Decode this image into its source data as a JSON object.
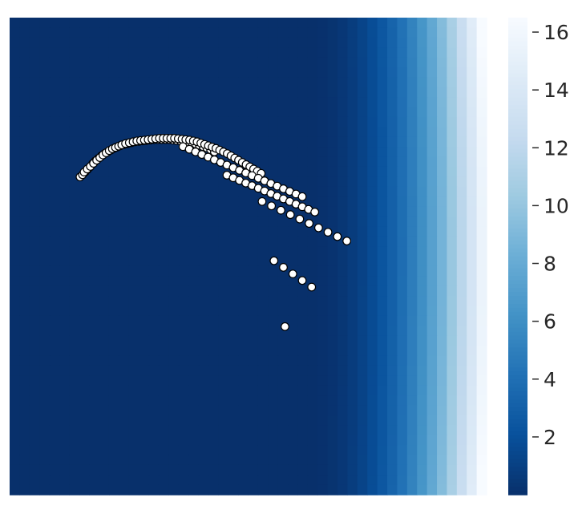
{
  "chart_data": {
    "type": "heatmap",
    "title": "",
    "xlabel": "",
    "ylabel": "",
    "axes_ticks_visible": false,
    "grid": false,
    "colormap": "Blues_r",
    "colormap_stops": [
      "#08306b",
      "#08519c",
      "#2171b5",
      "#4292c6",
      "#6baed6",
      "#9ecae1",
      "#c6dbef",
      "#deebf7",
      "#f7fbff"
    ],
    "heatmap": {
      "description_free_model": {
        "x_cells": 48,
        "y_cells": 48,
        "base_value": 0.0,
        "ramp_start_x": 0.62,
        "ramp_exponent": 2.3,
        "max_value": 16.5
      }
    },
    "colorbar": {
      "location": "right",
      "min": 0,
      "max": 16.5,
      "ticks": [
        2,
        4,
        6,
        8,
        10,
        12,
        14,
        16
      ],
      "tick_labels": [
        "2",
        "4",
        "6",
        "8",
        "10",
        "12",
        "14",
        "16"
      ]
    },
    "scatter": {
      "marker_fill": "#ffffff",
      "marker_edge": "#000000",
      "points": [
        [
          0.232,
          0.509
        ],
        [
          0.24,
          0.504
        ],
        [
          0.248,
          0.498
        ],
        [
          0.256,
          0.492
        ],
        [
          0.264,
          0.486
        ],
        [
          0.272,
          0.479
        ],
        [
          0.28,
          0.473
        ],
        [
          0.29,
          0.467
        ],
        [
          0.3,
          0.461
        ],
        [
          0.31,
          0.456
        ],
        [
          0.32,
          0.452
        ],
        [
          0.33,
          0.448
        ],
        [
          0.34,
          0.444
        ],
        [
          0.35,
          0.441
        ],
        [
          0.36,
          0.438
        ],
        [
          0.372,
          0.435
        ],
        [
          0.384,
          0.433
        ],
        [
          0.396,
          0.431
        ],
        [
          0.408,
          0.429
        ],
        [
          0.42,
          0.428
        ],
        [
          0.432,
          0.427
        ],
        [
          0.444,
          0.426
        ],
        [
          0.456,
          0.425
        ],
        [
          0.468,
          0.424
        ],
        [
          0.48,
          0.424
        ],
        [
          0.492,
          0.424
        ],
        [
          0.504,
          0.424
        ],
        [
          0.516,
          0.424
        ],
        [
          0.528,
          0.425
        ],
        [
          0.54,
          0.426
        ],
        [
          0.552,
          0.427
        ],
        [
          0.564,
          0.428
        ],
        [
          0.576,
          0.43
        ],
        [
          0.588,
          0.432
        ],
        [
          0.6,
          0.434
        ],
        [
          0.612,
          0.437
        ],
        [
          0.624,
          0.44
        ],
        [
          0.636,
          0.443
        ],
        [
          0.648,
          0.447
        ],
        [
          0.66,
          0.452
        ],
        [
          0.245,
          0.498
        ],
        [
          0.255,
          0.491
        ],
        [
          0.265,
          0.485
        ],
        [
          0.275,
          0.478
        ],
        [
          0.285,
          0.471
        ],
        [
          0.295,
          0.465
        ],
        [
          0.305,
          0.459
        ],
        [
          0.315,
          0.454
        ],
        [
          0.325,
          0.449
        ],
        [
          0.335,
          0.445
        ],
        [
          0.345,
          0.442
        ],
        [
          0.355,
          0.439
        ],
        [
          0.365,
          0.436
        ],
        [
          0.377,
          0.433
        ],
        [
          0.389,
          0.431
        ],
        [
          0.401,
          0.429
        ],
        [
          0.413,
          0.427
        ],
        [
          0.425,
          0.426
        ],
        [
          0.437,
          0.425
        ],
        [
          0.449,
          0.424
        ],
        [
          0.461,
          0.423
        ],
        [
          0.473,
          0.422
        ],
        [
          0.485,
          0.421
        ],
        [
          0.497,
          0.421
        ],
        [
          0.509,
          0.421
        ],
        [
          0.521,
          0.421
        ],
        [
          0.533,
          0.421
        ],
        [
          0.545,
          0.422
        ],
        [
          0.557,
          0.423
        ],
        [
          0.569,
          0.424
        ],
        [
          0.581,
          0.425
        ],
        [
          0.593,
          0.427
        ],
        [
          0.605,
          0.429
        ],
        [
          0.617,
          0.432
        ],
        [
          0.629,
          0.435
        ],
        [
          0.641,
          0.438
        ],
        [
          0.653,
          0.441
        ],
        [
          0.665,
          0.444
        ],
        [
          0.677,
          0.448
        ],
        [
          0.689,
          0.452
        ],
        [
          0.701,
          0.456
        ],
        [
          0.713,
          0.461
        ],
        [
          0.725,
          0.466
        ],
        [
          0.737,
          0.471
        ],
        [
          0.749,
          0.476
        ],
        [
          0.761,
          0.481
        ],
        [
          0.773,
          0.486
        ],
        [
          0.785,
          0.491
        ],
        [
          0.797,
          0.496
        ],
        [
          0.809,
          0.501
        ],
        [
          0.56,
          0.44
        ],
        [
          0.58,
          0.446
        ],
        [
          0.6,
          0.452
        ],
        [
          0.62,
          0.458
        ],
        [
          0.64,
          0.464
        ],
        [
          0.66,
          0.47
        ],
        [
          0.68,
          0.476
        ],
        [
          0.7,
          0.482
        ],
        [
          0.72,
          0.488
        ],
        [
          0.74,
          0.494
        ],
        [
          0.76,
          0.5
        ],
        [
          0.78,
          0.506
        ],
        [
          0.8,
          0.512
        ],
        [
          0.82,
          0.518
        ],
        [
          0.84,
          0.524
        ],
        [
          0.86,
          0.53
        ],
        [
          0.88,
          0.536
        ],
        [
          0.9,
          0.542
        ],
        [
          0.92,
          0.548
        ],
        [
          0.94,
          0.554
        ],
        [
          0.7,
          0.505
        ],
        [
          0.72,
          0.511
        ],
        [
          0.74,
          0.517
        ],
        [
          0.76,
          0.523
        ],
        [
          0.78,
          0.529
        ],
        [
          0.8,
          0.535
        ],
        [
          0.82,
          0.541
        ],
        [
          0.84,
          0.547
        ],
        [
          0.86,
          0.553
        ],
        [
          0.88,
          0.559
        ],
        [
          0.9,
          0.565
        ],
        [
          0.92,
          0.571
        ],
        [
          0.94,
          0.577
        ],
        [
          0.96,
          0.583
        ],
        [
          0.98,
          0.589
        ],
        [
          0.812,
          0.565
        ],
        [
          0.842,
          0.575
        ],
        [
          0.872,
          0.585
        ],
        [
          0.902,
          0.595
        ],
        [
          0.932,
          0.605
        ],
        [
          0.962,
          0.615
        ],
        [
          0.992,
          0.625
        ],
        [
          1.022,
          0.635
        ],
        [
          1.052,
          0.645
        ],
        [
          1.082,
          0.655
        ],
        [
          0.85,
          0.7
        ],
        [
          0.88,
          0.715
        ],
        [
          0.91,
          0.73
        ],
        [
          0.94,
          0.745
        ],
        [
          0.97,
          0.76
        ],
        [
          0.885,
          0.85
        ]
      ]
    }
  }
}
